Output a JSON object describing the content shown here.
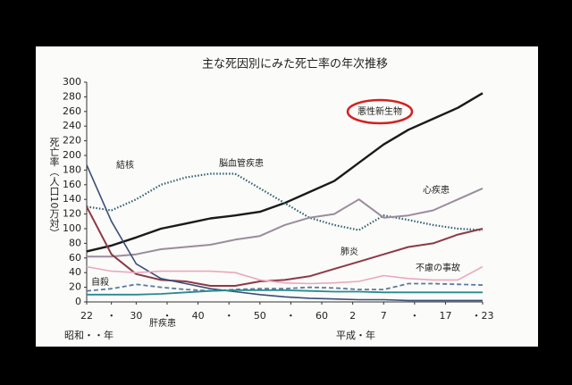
{
  "chart_data": {
    "type": "line",
    "title": "主な死因別にみた死亡率の年次推移",
    "y_label": "死亡率（人口10万対）",
    "x_label_left": "昭和・・年",
    "x_label_right": "平成・年",
    "x": [
      1947,
      1951,
      1955,
      1959,
      1963,
      1967,
      1971,
      1975,
      1979,
      1983,
      1987,
      1991,
      1995,
      1999,
      2003,
      2007,
      2011
    ],
    "xlim": [
      1947,
      2011
    ],
    "xticks": [
      {
        "value": 1947,
        "label": "22"
      },
      {
        "value": 1951,
        "label": "・"
      },
      {
        "value": 1955,
        "label": "30"
      },
      {
        "value": 1960,
        "label": "・"
      },
      {
        "value": 1965,
        "label": "40"
      },
      {
        "value": 1970,
        "label": "・"
      },
      {
        "value": 1975,
        "label": "50"
      },
      {
        "value": 1980,
        "label": "・"
      },
      {
        "value": 1985,
        "label": "60"
      },
      {
        "value": 1990,
        "label": "2"
      },
      {
        "value": 1995,
        "label": "7"
      },
      {
        "value": 2000,
        "label": "・"
      },
      {
        "value": 2005,
        "label": "17"
      },
      {
        "value": 2011,
        "label": "・23"
      }
    ],
    "ylim": [
      0,
      300
    ],
    "yticks": [
      0,
      20,
      40,
      60,
      80,
      100,
      120,
      140,
      160,
      180,
      200,
      220,
      240,
      260,
      280,
      300
    ],
    "grid": false,
    "series": [
      {
        "name": "悪性新生物",
        "color": "#1a1a1a",
        "dash": "solid",
        "width": 2.4,
        "highlight": "#d42020",
        "values": [
          69,
          77,
          88,
          100,
          107,
          114,
          118,
          123,
          135,
          150,
          165,
          190,
          215,
          235,
          250,
          265,
          285
        ]
      },
      {
        "name": "脳血管疾患",
        "color": "#2f5f73",
        "dash": "dotted",
        "width": 2.2,
        "values": [
          130,
          125,
          140,
          160,
          170,
          175,
          175,
          155,
          135,
          115,
          105,
          98,
          118,
          112,
          105,
          100,
          98
        ]
      },
      {
        "name": "心疾患",
        "color": "#9a8c9e",
        "dash": "solid",
        "width": 2,
        "values": [
          62,
          62,
          65,
          72,
          75,
          78,
          85,
          90,
          105,
          115,
          120,
          140,
          115,
          118,
          125,
          140,
          155
        ]
      },
      {
        "name": "肺炎",
        "color": "#8c3a46",
        "dash": "solid",
        "width": 2,
        "values": [
          130,
          65,
          38,
          30,
          28,
          22,
          22,
          28,
          30,
          35,
          45,
          55,
          65,
          75,
          80,
          92,
          100
        ]
      },
      {
        "name": "結核",
        "color": "#3a4e7a",
        "dash": "solid",
        "width": 1.6,
        "values": [
          187,
          110,
          52,
          32,
          25,
          18,
          14,
          10,
          7,
          5,
          4,
          3,
          3,
          2,
          2,
          2,
          2
        ]
      },
      {
        "name": "不慮の事故",
        "color": "#e8a8c0",
        "dash": "solid",
        "width": 1.6,
        "values": [
          48,
          42,
          40,
          42,
          42,
          42,
          40,
          30,
          26,
          25,
          26,
          28,
          36,
          32,
          30,
          30,
          48
        ]
      },
      {
        "name": "自殺",
        "color": "#5a7aa0",
        "dash": "dashed",
        "width": 1.8,
        "values": [
          15,
          18,
          24,
          20,
          17,
          15,
          17,
          18,
          18,
          20,
          19,
          17,
          17,
          25,
          25,
          24,
          23
        ]
      },
      {
        "name": "肝疾患",
        "color": "#2a8a8c",
        "dash": "solid",
        "width": 1.8,
        "values": [
          10,
          10,
          10,
          11,
          13,
          15,
          16,
          16,
          16,
          15,
          14,
          14,
          13,
          13,
          13,
          13,
          13
        ]
      }
    ]
  }
}
